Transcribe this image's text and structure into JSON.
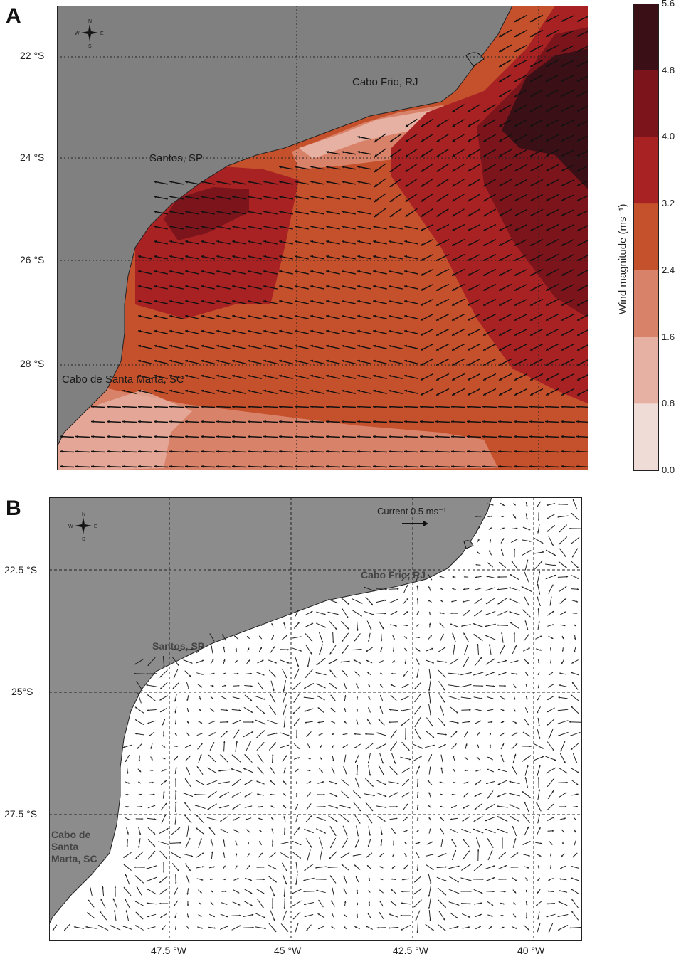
{
  "panel_a": {
    "letter": "A",
    "lat_labels": [
      "22 °S",
      "24 °S",
      "26 °S",
      "28 °S"
    ],
    "places": {
      "cabo_frio": "Cabo Frio, RJ",
      "santos": "Santos, SP",
      "santa_marta": "Cabo de Santa Marta, SC"
    },
    "compass": {
      "n": "N",
      "s": "S",
      "e": "E",
      "w": "W"
    },
    "colorbar": {
      "title": "Wind magnitude (ms⁻¹)",
      "ticks": [
        "5.6",
        "4.8",
        "4.0",
        "3.2",
        "2.4",
        "1.6",
        "0.8",
        "0.0"
      ],
      "colors": [
        "#3a1016",
        "#7c141b",
        "#a82224",
        "#c4502c",
        "#d9826a",
        "#e6b0a2",
        "#efdcd6"
      ]
    },
    "land_color": "#808080"
  },
  "panel_b": {
    "letter": "B",
    "lat_labels": [
      "22.5 °S",
      "25°S",
      "27.5 °S"
    ],
    "lon_labels": [
      "47.5 °W",
      "45 °W",
      "42.5 °W",
      "40 °W"
    ],
    "places": {
      "cabo_frio": "Cabo Frio, RJ",
      "santos": "Santos, SP",
      "santa_marta_1": "Cabo de",
      "santa_marta_2": "Santa",
      "santa_marta_3": "Marta, SC"
    },
    "compass": {
      "n": "N",
      "s": "S",
      "e": "E",
      "w": "W"
    },
    "current_key": "Current 0.5 ms⁻¹",
    "land_color": "#8c8c8c"
  }
}
